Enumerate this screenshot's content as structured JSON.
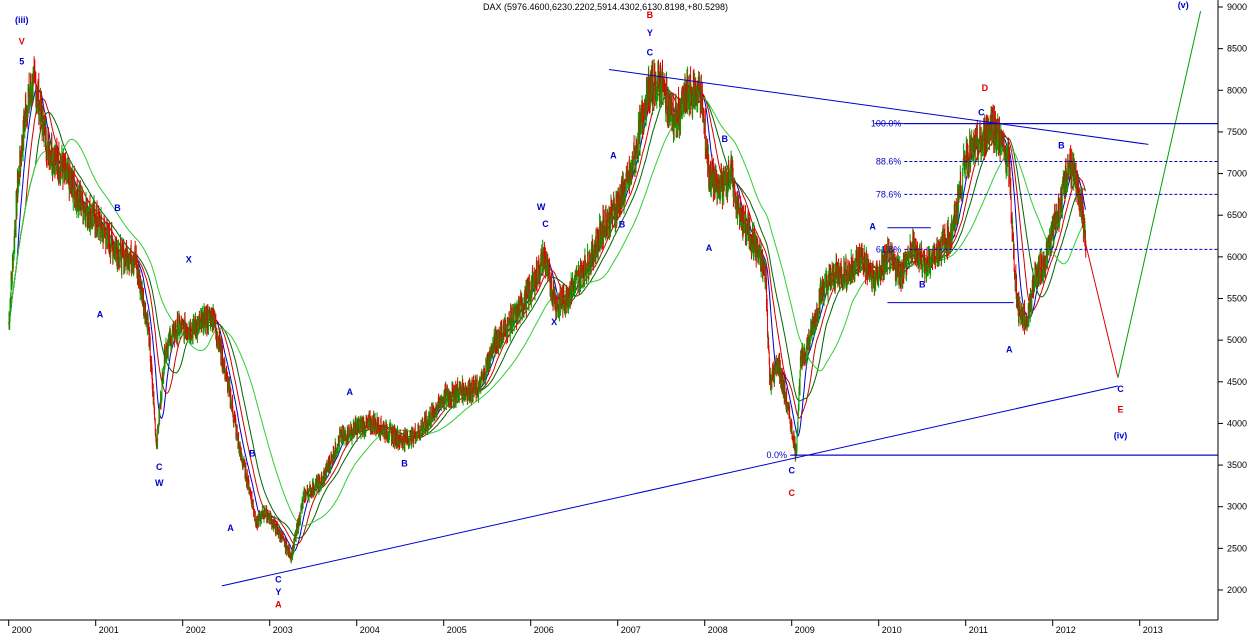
{
  "chart_data": {
    "type": "line",
    "title": "DAX (5976.4600,6230.2202,5914.4302,6130.8198,+80.5298)",
    "xlabel": "",
    "ylabel": "",
    "ylim": [
      1800,
      9000
    ],
    "xlim": [
      1999.9,
      2013.9
    ],
    "grid": false,
    "yticks": [
      "2000",
      "2500",
      "3000",
      "3500",
      "4000",
      "4500",
      "5000",
      "5500",
      "6000",
      "6500",
      "7000",
      "7500",
      "8000",
      "8500",
      "9000"
    ],
    "xticks": [
      "2000",
      "2001",
      "2002",
      "2003",
      "2004",
      "2005",
      "2006",
      "2007",
      "2008",
      "2009",
      "2010",
      "2011",
      "2012",
      "2013"
    ],
    "colors": {
      "price_up": "#00a000",
      "price_down": "#e00000",
      "ma_blue": "#0000cc",
      "ma_red": "#cc0000",
      "ma_dark_green": "#006400",
      "ma_light_green": "#33cc33",
      "trend": "#0000cc",
      "projection_red": "#dd0000",
      "projection_green": "#00a000",
      "label_blue": "#0000cc",
      "label_red": "#dd0000"
    },
    "series": [
      {
        "name": "",
        "role": "price",
        "x": [
          2000.0,
          2000.1,
          2000.2,
          2000.3,
          2000.45,
          2000.6,
          2000.8,
          2001.0,
          2001.15,
          2001.3,
          2001.45,
          2001.6,
          2001.7,
          2001.8,
          2001.95,
          2002.15,
          2002.35,
          2002.45,
          2002.55,
          2002.65,
          2002.75,
          2002.85,
          2002.95,
          2003.1,
          2003.25,
          2003.4,
          2003.6,
          2003.8,
          2004.0,
          2004.2,
          2004.35,
          2004.5,
          2004.65,
          2004.8,
          2005.0,
          2005.2,
          2005.4,
          2005.6,
          2005.8,
          2006.0,
          2006.15,
          2006.3,
          2006.4,
          2006.55,
          2006.7,
          2006.85,
          2007.0,
          2007.15,
          2007.35,
          2007.5,
          2007.65,
          2007.8,
          2007.95,
          2008.05,
          2008.15,
          2008.3,
          2008.4,
          2008.55,
          2008.7,
          2008.75,
          2008.85,
          2008.95,
          2009.05,
          2009.1,
          2009.2,
          2009.35,
          2009.5,
          2009.65,
          2009.8,
          2009.95,
          2010.1,
          2010.25,
          2010.4,
          2010.55,
          2010.7,
          2010.85,
          2011.0,
          2011.1,
          2011.2,
          2011.3,
          2011.4,
          2011.5,
          2011.55,
          2011.6,
          2011.7,
          2011.8,
          2011.9,
          2012.0,
          2012.1,
          2012.2,
          2012.25,
          2012.32,
          2012.38
        ],
        "y": [
          5200,
          6800,
          7800,
          8100,
          7300,
          7100,
          6700,
          6450,
          6200,
          6000,
          6000,
          5200,
          3750,
          4900,
          5150,
          5150,
          5300,
          4800,
          4300,
          3700,
          3300,
          2800,
          2950,
          2700,
          2400,
          3150,
          3300,
          3800,
          3950,
          4000,
          3900,
          3800,
          3850,
          4000,
          4300,
          4400,
          4400,
          5000,
          5250,
          5600,
          6000,
          5400,
          5500,
          5750,
          6000,
          6400,
          6600,
          7000,
          8000,
          8100,
          7600,
          7950,
          8000,
          7000,
          6800,
          7000,
          6500,
          6200,
          5800,
          4500,
          4700,
          4200,
          3650,
          4700,
          5000,
          5600,
          5800,
          5800,
          6000,
          5700,
          6000,
          5800,
          6100,
          5900,
          6100,
          6300,
          7200,
          7300,
          7400,
          7600,
          7400,
          7100,
          6000,
          5400,
          5200,
          5800,
          5900,
          6300,
          6700,
          7150,
          6900,
          6700,
          6150
        ]
      },
      {
        "name": "",
        "role": "projection",
        "x": [
          2012.38,
          2012.75,
          2013.7
        ],
        "y": [
          6150,
          4550,
          8950
        ]
      }
    ],
    "trendlines": [
      {
        "x": [
          2002.45,
          2012.75
        ],
        "y": [
          2050,
          4450
        ]
      },
      {
        "x": [
          2006.9,
          2013.1
        ],
        "y": [
          8250,
          7350
        ]
      },
      {
        "x": [
          2009.0,
          2013.9
        ],
        "y": [
          3620,
          3620
        ]
      },
      {
        "x": [
          2009.95,
          2013.9
        ],
        "y": [
          7600,
          7600
        ]
      },
      {
        "x": [
          2010.1,
          2011.55
        ],
        "y": [
          5450,
          5450
        ]
      },
      {
        "x": [
          2010.1,
          2010.6
        ],
        "y": [
          6350,
          6350
        ]
      }
    ],
    "fibonacci": {
      "levels": [
        {
          "label": "100.0%",
          "value": 7600
        },
        {
          "label": "88.6%",
          "value": 7145
        },
        {
          "label": "78.6%",
          "value": 6750
        },
        {
          "label": "61.8%",
          "value": 6090
        },
        {
          "label": "0.0%",
          "value": 3620
        }
      ],
      "x_start": 2009.95,
      "x_end": 2013.9
    },
    "annotations": [
      {
        "text": "(iii)",
        "x": 2000.15,
        "y": 8810,
        "color": "blue"
      },
      {
        "text": "V",
        "x": 2000.15,
        "y": 8550,
        "color": "red"
      },
      {
        "text": "5",
        "x": 2000.15,
        "y": 8310,
        "color": "blue"
      },
      {
        "text": "A",
        "x": 2001.05,
        "y": 5270,
        "color": "blue"
      },
      {
        "text": "B",
        "x": 2001.25,
        "y": 6550,
        "color": "blue"
      },
      {
        "text": "C",
        "x": 2001.73,
        "y": 3440,
        "color": "blue"
      },
      {
        "text": "W",
        "x": 2001.73,
        "y": 3250,
        "color": "blue"
      },
      {
        "text": "X",
        "x": 2002.07,
        "y": 5930,
        "color": "blue"
      },
      {
        "text": "A",
        "x": 2002.55,
        "y": 2710,
        "color": "blue"
      },
      {
        "text": "B",
        "x": 2002.8,
        "y": 3600,
        "color": "blue"
      },
      {
        "text": "C",
        "x": 2003.1,
        "y": 2090,
        "color": "blue"
      },
      {
        "text": "Y",
        "x": 2003.1,
        "y": 1940,
        "color": "blue"
      },
      {
        "text": "A",
        "x": 2003.1,
        "y": 1790,
        "color": "red"
      },
      {
        "text": "A",
        "x": 2003.92,
        "y": 4340,
        "color": "blue"
      },
      {
        "text": "B",
        "x": 2004.55,
        "y": 3480,
        "color": "blue"
      },
      {
        "text": "W",
        "x": 2006.12,
        "y": 6560,
        "color": "blue"
      },
      {
        "text": "C",
        "x": 2006.17,
        "y": 6360,
        "color": "blue"
      },
      {
        "text": "X",
        "x": 2006.27,
        "y": 5180,
        "color": "blue"
      },
      {
        "text": "A",
        "x": 2006.95,
        "y": 7180,
        "color": "blue"
      },
      {
        "text": "B",
        "x": 2007.05,
        "y": 6350,
        "color": "blue"
      },
      {
        "text": "B",
        "x": 2007.37,
        "y": 8870,
        "color": "red"
      },
      {
        "text": "Y",
        "x": 2007.37,
        "y": 8650,
        "color": "blue"
      },
      {
        "text": "C",
        "x": 2007.37,
        "y": 8420,
        "color": "blue"
      },
      {
        "text": "B",
        "x": 2008.23,
        "y": 7380,
        "color": "blue"
      },
      {
        "text": "A",
        "x": 2008.05,
        "y": 6070,
        "color": "blue"
      },
      {
        "text": "C",
        "x": 2009.0,
        "y": 3400,
        "color": "blue"
      },
      {
        "text": "C",
        "x": 2009.0,
        "y": 3130,
        "color": "red"
      },
      {
        "text": "A",
        "x": 2009.93,
        "y": 6330,
        "color": "blue"
      },
      {
        "text": "B",
        "x": 2010.5,
        "y": 5630,
        "color": "blue"
      },
      {
        "text": "D",
        "x": 2011.22,
        "y": 7990,
        "color": "red"
      },
      {
        "text": "C",
        "x": 2011.18,
        "y": 7700,
        "color": "blue"
      },
      {
        "text": "A",
        "x": 2011.5,
        "y": 4850,
        "color": "blue"
      },
      {
        "text": "B",
        "x": 2012.1,
        "y": 7300,
        "color": "blue"
      },
      {
        "text": "C",
        "x": 2012.78,
        "y": 4380,
        "color": "blue"
      },
      {
        "text": "E",
        "x": 2012.78,
        "y": 4130,
        "color": "red"
      },
      {
        "text": "(iv)",
        "x": 2012.78,
        "y": 3820,
        "color": "blue"
      },
      {
        "text": "(v)",
        "x": 2013.5,
        "y": 8990,
        "color": "blue"
      }
    ]
  }
}
